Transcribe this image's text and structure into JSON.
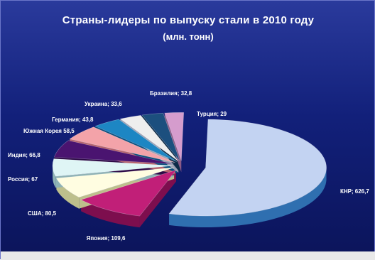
{
  "chart_data": {
    "type": "pie",
    "title": "Страны-лидеры по выпуску стали в 2010 году",
    "subtitle": "(млн. тонн)",
    "slices": [
      {
        "label": "КНР; 626,7",
        "value": 626.7,
        "color": "#c3d3f2",
        "side": "#2f6fb0"
      },
      {
        "label": "Япония; 109,6",
        "value": 109.6,
        "color": "#c11f78",
        "side": "#7d0e4e"
      },
      {
        "label": "США; 80,5",
        "value": 80.5,
        "color": "#fffde1",
        "side": "#bdbf8c"
      },
      {
        "label": "Россия; 67",
        "value": 67,
        "color": "#dff5f5",
        "side": "#8fb2b5"
      },
      {
        "label": "Индия; 66,8",
        "value": 66.8,
        "color": "#4a1470",
        "side": "#2d0a46"
      },
      {
        "label": "Южная Корея 58,5",
        "value": 58.5,
        "color": "#f3a3a9",
        "side": "#b5636d"
      },
      {
        "label": "Германия; 43,8",
        "value": 43.8,
        "color": "#1d86c3",
        "side": "#0c4f7d"
      },
      {
        "label": "Украина; 33,6",
        "value": 33.6,
        "color": "#eeeeee",
        "side": "#9aa0b3"
      },
      {
        "label": "Бразилия; 32,8",
        "value": 32.8,
        "color": "#1c4f7e",
        "side": "#0c2b48"
      },
      {
        "label": "Турция; 29",
        "value": 29,
        "color": "#d59ccd",
        "side": "#8a5a86"
      }
    ]
  }
}
